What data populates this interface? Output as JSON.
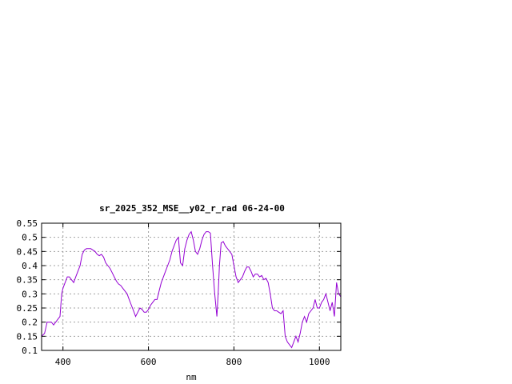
{
  "chart_data": {
    "type": "line",
    "title": "sr_2025_352_MSE__y02_r_rad 06-24-00",
    "xlabel": "nm",
    "ylabel": "",
    "xlim": [
      350,
      1050
    ],
    "ylim": [
      0.1,
      0.55
    ],
    "grid": true,
    "x_ticks": [
      400,
      600,
      800,
      1000
    ],
    "x_tick_labels": [
      "400",
      "600",
      "800",
      "1000"
    ],
    "y_ticks": [
      0.1,
      0.15,
      0.2,
      0.25,
      0.3,
      0.35,
      0.4,
      0.45,
      0.5,
      0.55
    ],
    "y_tick_labels": [
      "0.1",
      "0.15",
      "0.2",
      "0.25",
      "0.3",
      "0.35",
      "0.4",
      "0.45",
      "0.5",
      "0.55"
    ],
    "line_color": "#9400d3",
    "series": [
      {
        "x": [
          350,
          357,
          363,
          368,
          373,
          378,
          383,
          388,
          393,
          397,
          400,
          405,
          410,
          415,
          420,
          425,
          430,
          435,
          440,
          445,
          450,
          455,
          460,
          465,
          470,
          475,
          480,
          485,
          490,
          495,
          500,
          505,
          510,
          515,
          520,
          525,
          530,
          535,
          540,
          545,
          550,
          555,
          560,
          565,
          570,
          575,
          580,
          585,
          590,
          595,
          600,
          605,
          610,
          615,
          620,
          625,
          630,
          635,
          640,
          645,
          650,
          655,
          660,
          665,
          670,
          675,
          680,
          685,
          690,
          695,
          700,
          705,
          710,
          715,
          720,
          725,
          730,
          735,
          740,
          745,
          750,
          755,
          760,
          763,
          766,
          770,
          775,
          780,
          785,
          790,
          795,
          800,
          805,
          810,
          815,
          820,
          825,
          830,
          835,
          840,
          845,
          850,
          855,
          860,
          865,
          870,
          875,
          880,
          885,
          890,
          895,
          900,
          905,
          910,
          915,
          920,
          925,
          930,
          935,
          940,
          945,
          950,
          955,
          960,
          965,
          970,
          975,
          980,
          985,
          990,
          995,
          1000,
          1005,
          1010,
          1015,
          1020,
          1025,
          1030,
          1035,
          1040,
          1045,
          1050
        ],
        "y": [
          0.15,
          0.16,
          0.2,
          0.2,
          0.2,
          0.19,
          0.2,
          0.21,
          0.22,
          0.3,
          0.32,
          0.34,
          0.36,
          0.36,
          0.35,
          0.34,
          0.36,
          0.38,
          0.4,
          0.44,
          0.455,
          0.46,
          0.46,
          0.46,
          0.455,
          0.45,
          0.44,
          0.435,
          0.44,
          0.43,
          0.41,
          0.4,
          0.39,
          0.375,
          0.36,
          0.345,
          0.335,
          0.33,
          0.32,
          0.31,
          0.3,
          0.28,
          0.26,
          0.24,
          0.22,
          0.235,
          0.25,
          0.245,
          0.235,
          0.235,
          0.245,
          0.26,
          0.27,
          0.28,
          0.28,
          0.31,
          0.34,
          0.36,
          0.38,
          0.4,
          0.42,
          0.45,
          0.47,
          0.49,
          0.5,
          0.41,
          0.4,
          0.46,
          0.49,
          0.51,
          0.52,
          0.49,
          0.45,
          0.44,
          0.46,
          0.49,
          0.51,
          0.52,
          0.52,
          0.515,
          0.4,
          0.3,
          0.22,
          0.3,
          0.4,
          0.48,
          0.485,
          0.47,
          0.46,
          0.45,
          0.44,
          0.4,
          0.36,
          0.34,
          0.35,
          0.36,
          0.38,
          0.395,
          0.395,
          0.38,
          0.36,
          0.37,
          0.37,
          0.36,
          0.365,
          0.35,
          0.355,
          0.34,
          0.3,
          0.25,
          0.24,
          0.24,
          0.235,
          0.23,
          0.24,
          0.15,
          0.13,
          0.12,
          0.11,
          0.13,
          0.15,
          0.13,
          0.16,
          0.2,
          0.22,
          0.2,
          0.23,
          0.24,
          0.25,
          0.28,
          0.25,
          0.25,
          0.27,
          0.28,
          0.3,
          0.27,
          0.24,
          0.27,
          0.22,
          0.34,
          0.3,
          0.29
        ]
      }
    ]
  }
}
